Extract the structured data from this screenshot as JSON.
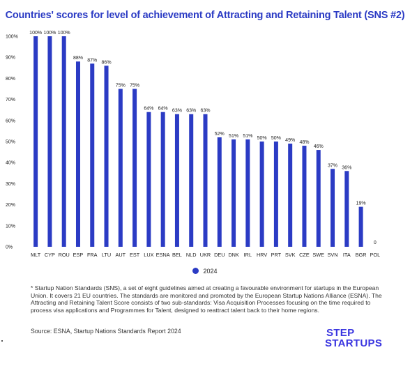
{
  "title": "Countries' scores for level of achievement of Attracting and Retaining Talent (SNS #2)",
  "colors": {
    "bar": "#2B3BC4",
    "title": "#2B3BC4",
    "logo": "#3A35E0",
    "logo_accent": "#2FC98A"
  },
  "legend_label": "2024",
  "footnote": "* Startup Nation Standards (SNS), a set of eight guidelines aimed at creating a favourable environment for startups in the European Union. It covers 21 EU countries. The standards are monitored and promoted by the European Startup Nations Alliance (ESNA). The Attracting and Retaining Talent Score consists of two sub-standards: Visa Acquisition Processes focusing on the time required to process visa applications and Programmes for Talent, designed to reattract talent back to their home regions.",
  "source": "Source: ESNA, Startup Nations Standards Report 2024",
  "logo": {
    "line1": "STEP",
    "line2": "STARTUPS"
  },
  "chart_data": {
    "type": "bar",
    "title": "Countries' scores for level of achievement of Attracting and Retaining Talent (SNS #2)",
    "xlabel": "",
    "ylabel": "",
    "ylim": [
      0,
      100
    ],
    "yticks": [
      "0%",
      "10%",
      "20%",
      "30%",
      "40%",
      "50%",
      "60%",
      "70%",
      "80%",
      "90%",
      "100%"
    ],
    "grid": false,
    "legend_position": "bottom",
    "categories": [
      "MLT",
      "CYP",
      "ROU",
      "ESP",
      "FRA",
      "LTU",
      "AUT",
      "EST",
      "LUX",
      "ESNA",
      "BEL",
      "NLD",
      "UKR",
      "DEU",
      "DNK",
      "IRL",
      "HRV",
      "PRT",
      "SVK",
      "CZE",
      "SWE",
      "SVN",
      "ITA",
      "BGR",
      "POL"
    ],
    "series": [
      {
        "name": "2024",
        "values": [
          100,
          100,
          100,
          88,
          87,
          86,
          75,
          75,
          64,
          64,
          63,
          63,
          63,
          52,
          51,
          51,
          50,
          50,
          49,
          48,
          46,
          37,
          36,
          19,
          0
        ],
        "labels": [
          "100%",
          "100%",
          "100%",
          "88%",
          "87%",
          "86%",
          "75%",
          "75%",
          "64%",
          "64%",
          "63%",
          "63%",
          "63%",
          "52%",
          "51%",
          "51%",
          "50%",
          "50%",
          "49%",
          "48%",
          "46%",
          "37%",
          "36%",
          "19%",
          "0"
        ]
      }
    ]
  }
}
